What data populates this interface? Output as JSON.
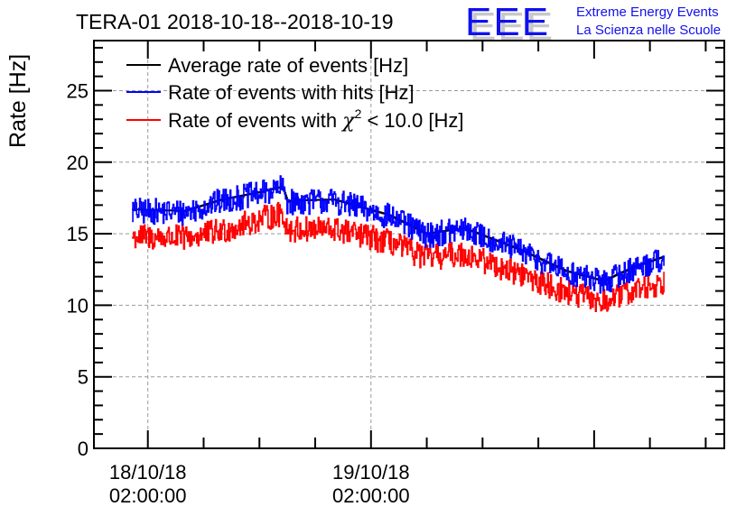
{
  "chart_data": {
    "type": "line",
    "title": "TERA-01 2018-10-18--2018-10-19",
    "xlabel": "",
    "ylabel": "Rate [Hz]",
    "ylim": [
      0,
      28.5
    ],
    "xlim_hours_from_2018_10_18_00_00": [
      -3.8,
      64.0
    ],
    "yticks": [
      0,
      5,
      10,
      15,
      20,
      25
    ],
    "ytick_labels": [
      "0",
      "5",
      "10",
      "15",
      "20",
      "25"
    ],
    "xticks": [
      {
        "hours": 2,
        "line1": "18/10/18",
        "line2": "02:00:00"
      },
      {
        "hours": 26,
        "line1": "19/10/18",
        "line2": "02:00:00"
      }
    ],
    "grid": true,
    "legend_position": "top-left",
    "x_unit": "hours since 2018-10-18 00:00",
    "series": [
      {
        "name": "Average rate of events [Hz]",
        "color": "#000000",
        "x": [
          0.3,
          6,
          10,
          14,
          16.5,
          17,
          22,
          28,
          32,
          36,
          42,
          47,
          51,
          54,
          57.5
        ],
        "values": [
          16.7,
          16.6,
          17.4,
          17.9,
          18.3,
          17.3,
          17.4,
          16.3,
          15.0,
          15.4,
          13.9,
          12.4,
          11.7,
          12.6,
          13.4
        ]
      },
      {
        "name": "Rate of events with hits [Hz]",
        "color": "#0000ff",
        "x": [
          0.3,
          6,
          10,
          14,
          16.5,
          17,
          22,
          28,
          32,
          36,
          42,
          47,
          51,
          54,
          57.5
        ],
        "values": [
          16.6,
          16.5,
          17.3,
          17.8,
          18.2,
          17.2,
          17.3,
          16.2,
          14.9,
          15.3,
          13.8,
          12.3,
          11.6,
          12.5,
          13.3
        ],
        "noise_amplitude": 0.9
      },
      {
        "name": "Rate of events with χ² < 10.0 [Hz]",
        "color": "#ff0000",
        "x": [
          0.3,
          6,
          10,
          14,
          16.5,
          17,
          22,
          28,
          32,
          36,
          42,
          47,
          51,
          54,
          57.5
        ],
        "values": [
          14.8,
          14.7,
          15.2,
          16.0,
          16.4,
          15.3,
          15.3,
          14.4,
          13.3,
          13.6,
          12.2,
          10.9,
          10.2,
          11.0,
          11.6
        ],
        "noise_amplitude": 0.9
      }
    ]
  },
  "legend": {
    "items": [
      {
        "label": "Average rate of events [Hz]",
        "color": "#000000"
      },
      {
        "label": "Rate of events with hits [Hz]",
        "color": "#0000ff"
      },
      {
        "label_prefix": "Rate of events with ",
        "label_chi": "χ",
        "label_sup": "2",
        "label_suffix": " < 10.0 [Hz]",
        "color": "#ff0000"
      }
    ]
  },
  "logo": {
    "mark": "EEE",
    "line1": "Extreme Energy Events",
    "line2": "La Scienza nelle Scuole",
    "color": "#1111ee"
  }
}
